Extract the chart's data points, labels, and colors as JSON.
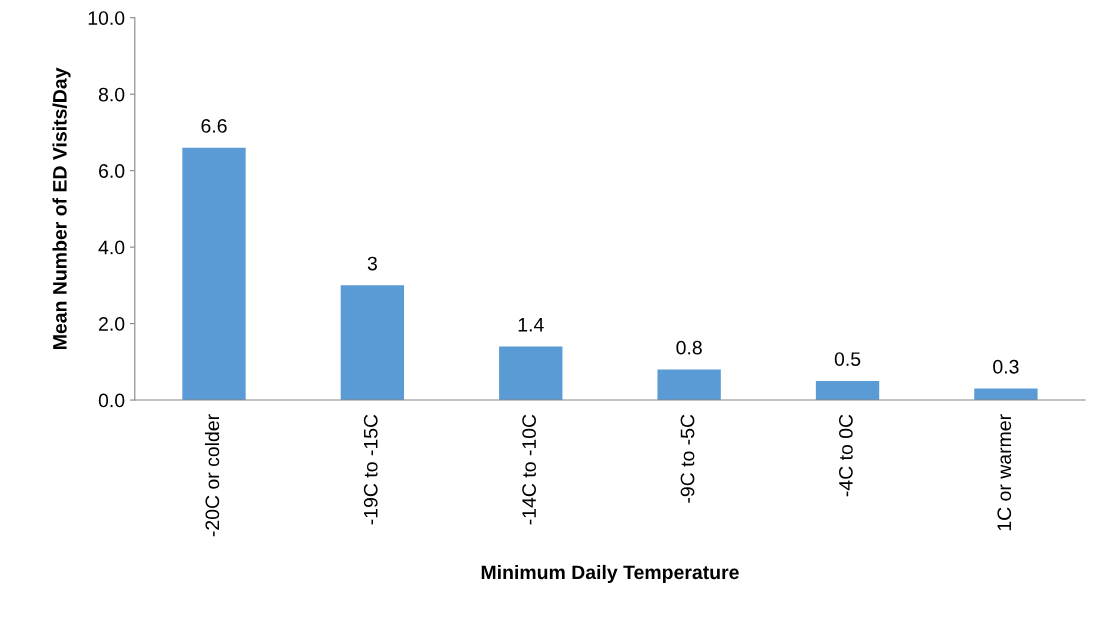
{
  "chart_data": {
    "type": "bar",
    "xlabel": "Minimum Daily Temperature",
    "ylabel": "Mean Number of ED Visits/Day",
    "categories": [
      "-20C or colder",
      "-19C to -15C",
      "-14C to -10C",
      "-9C to -5C",
      "-4C to 0C",
      "1C or warmer"
    ],
    "values": [
      6.6,
      3,
      1.4,
      0.8,
      0.5,
      0.3
    ],
    "color": "#5b9bd5",
    "data_labels": true,
    "grid": false,
    "legend": false,
    "ylim": [
      0,
      10
    ],
    "yticks": [
      {
        "value": 0,
        "label": "0.0"
      },
      {
        "value": 2,
        "label": "2.0"
      },
      {
        "value": 4,
        "label": "4.0"
      },
      {
        "value": 6,
        "label": "6.0"
      },
      {
        "value": 8,
        "label": "8.0"
      },
      {
        "value": 10,
        "label": "10.0"
      }
    ]
  }
}
